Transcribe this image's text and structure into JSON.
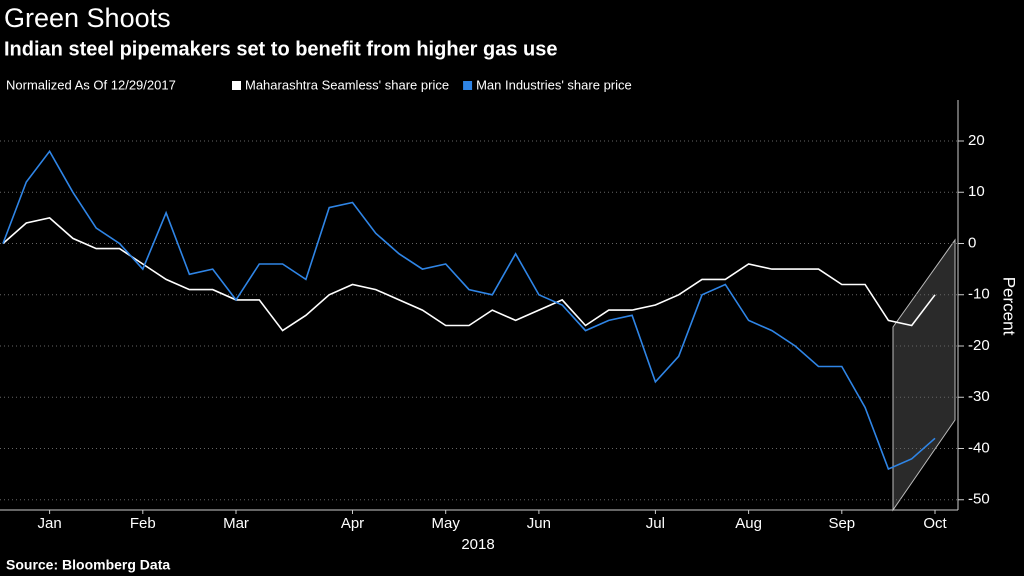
{
  "chart_data": {
    "type": "line",
    "title": "Green Shoots",
    "subtitle": "Indian steel pipemakers set to benefit from higher gas use",
    "legend_title": "Normalized As Of 12/29/2017",
    "source": "Source: Bloomberg Data",
    "ylabel": "Percent",
    "xlabel": "2018",
    "categories": [
      null,
      null,
      "Jan",
      null,
      null,
      null,
      "Feb",
      null,
      null,
      null,
      "Mar",
      null,
      null,
      null,
      null,
      "Apr",
      null,
      null,
      null,
      "May",
      null,
      null,
      null,
      "Jun",
      null,
      null,
      null,
      null,
      "Jul",
      null,
      null,
      null,
      "Aug",
      null,
      null,
      null,
      "Sep",
      null,
      null,
      null,
      "Oct"
    ],
    "series": [
      {
        "name": "Maharashtra Seamless' share price",
        "color": "#ffffff",
        "values": [
          0,
          4,
          5,
          1,
          -1,
          -1,
          -4,
          -7,
          -9,
          -9,
          -11,
          -11,
          -17,
          -14,
          -10,
          -8,
          -9,
          -11,
          -13,
          -16,
          -16,
          -13,
          -15,
          -13,
          -11,
          -16,
          -13,
          -13,
          -12,
          -10,
          -7,
          -7,
          -4,
          -5,
          -5,
          -5,
          -8,
          -8,
          -15,
          -16,
          -10
        ]
      },
      {
        "name": "Man Industries' share price",
        "color": "#2f85e6",
        "values": [
          0,
          12,
          18,
          10,
          3,
          0,
          -5,
          6,
          -6,
          -5,
          -11,
          -4,
          -4,
          -7,
          7,
          8,
          2,
          -2,
          -5,
          -4,
          -9,
          -10,
          -2,
          -10,
          -12,
          -17,
          -15,
          -14,
          -27,
          -22,
          -10,
          -8,
          -15,
          -17,
          -20,
          -24,
          -24,
          -32,
          -44,
          -42,
          -38
        ]
      }
    ],
    "ylim": [
      -52,
      28
    ],
    "yticks": [
      -50,
      -40,
      -30,
      -20,
      -10,
      0,
      10,
      20
    ],
    "grid": true
  }
}
